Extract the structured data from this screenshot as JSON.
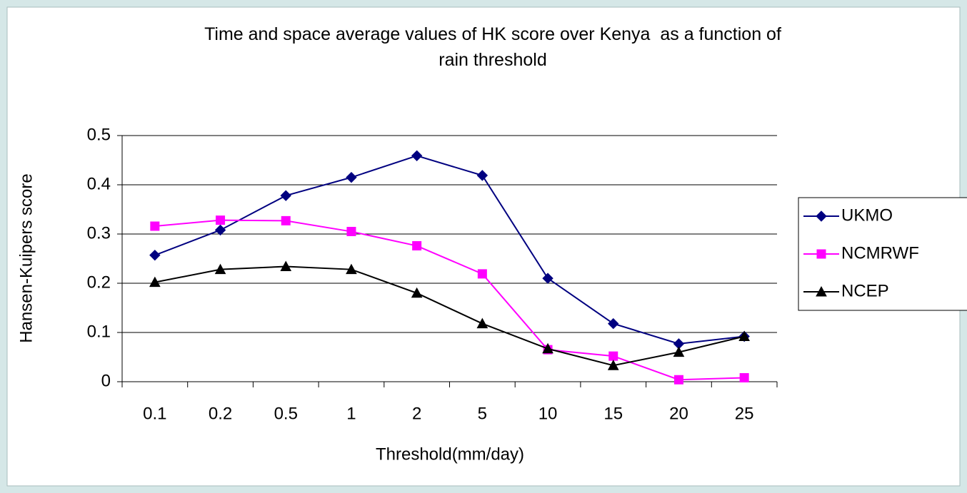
{
  "chart_data": {
    "type": "line",
    "title": "Time and space average values of HK score over Kenya  as a function of rain threshold",
    "xlabel": "Threshold(mm/day)",
    "ylabel": "Hansen-Kuipers score",
    "categories": [
      "0.1",
      "0.2",
      "0.5",
      "1",
      "2",
      "5",
      "10",
      "15",
      "20",
      "25"
    ],
    "series": [
      {
        "name": "UKMO",
        "color": "#000080",
        "marker": "diamond",
        "values": [
          0.257,
          0.308,
          0.378,
          0.415,
          0.459,
          0.419,
          0.21,
          0.118,
          0.077,
          0.092
        ]
      },
      {
        "name": "NCMRWF",
        "color": "#ff00ff",
        "marker": "square",
        "values": [
          0.316,
          0.328,
          0.327,
          0.305,
          0.276,
          0.219,
          0.065,
          0.052,
          0.004,
          0.008
        ]
      },
      {
        "name": "NCEP",
        "color": "#000000",
        "marker": "triangle",
        "values": [
          0.202,
          0.228,
          0.234,
          0.228,
          0.18,
          0.118,
          0.067,
          0.033,
          0.06,
          0.092
        ]
      }
    ],
    "ylim": [
      0,
      0.5
    ],
    "yticks": [
      0,
      0.1,
      0.2,
      0.3,
      0.4,
      0.5
    ],
    "grid": true,
    "legend": "right"
  }
}
